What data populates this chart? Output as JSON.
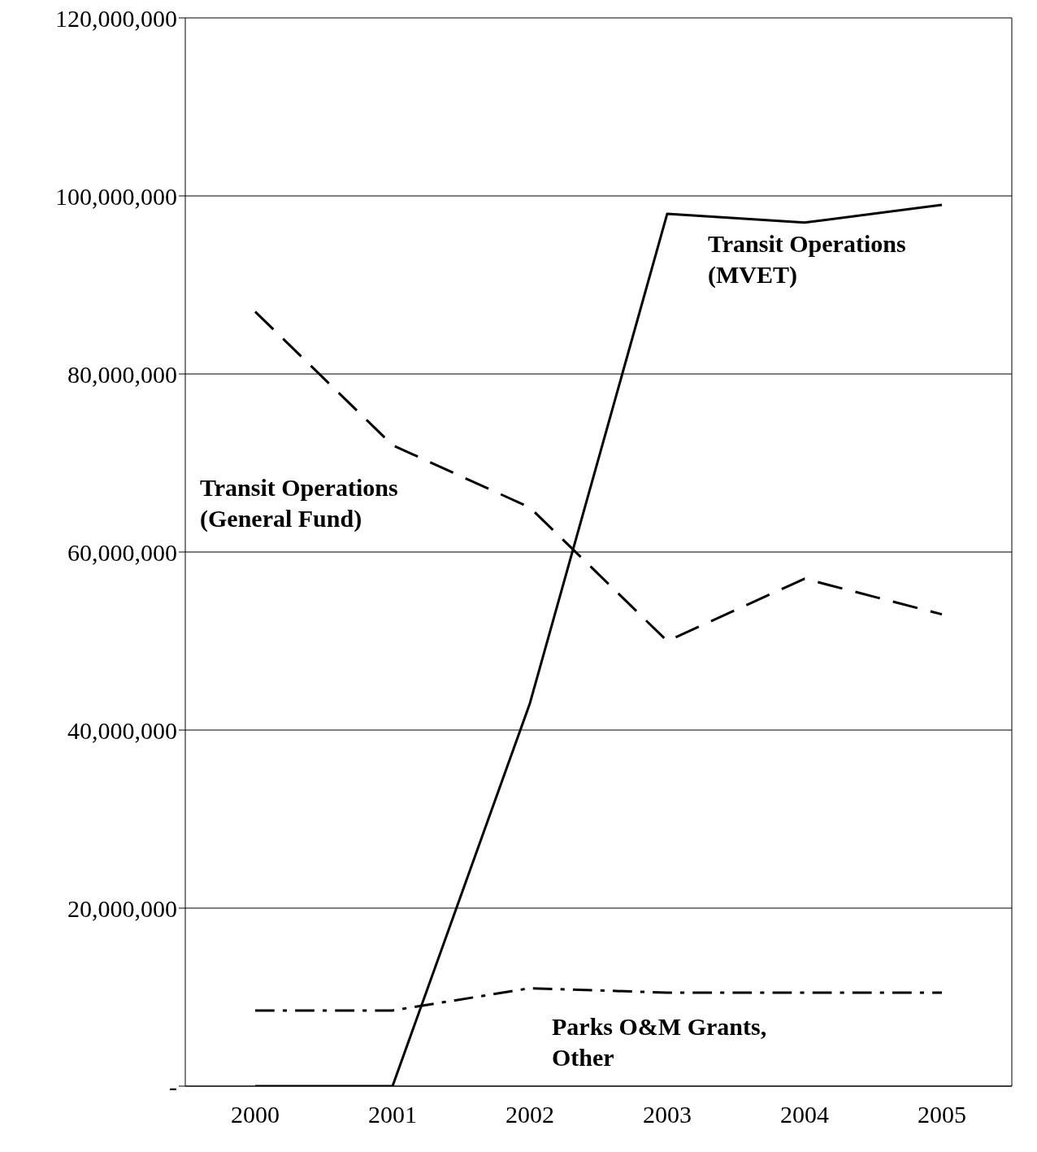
{
  "chart_data": {
    "type": "line",
    "categories": [
      "2000",
      "2001",
      "2002",
      "2003",
      "2004",
      "2005"
    ],
    "series": [
      {
        "name": "Transit Operations (MVET)",
        "color": "#000000",
        "line_style": "solid",
        "values": [
          0,
          0,
          43000000,
          98000000,
          97000000,
          99000000
        ]
      },
      {
        "name": "Transit Operations (General Fund)",
        "color": "#000000",
        "line_style": "dashed",
        "values": [
          87000000,
          72000000,
          65000000,
          50000000,
          57000000,
          53000000
        ]
      },
      {
        "name": "Parks O&M Grants, Other",
        "color": "#000000",
        "line_style": "dotted",
        "values": [
          8500000,
          8500000,
          11000000,
          10500000,
          10500000,
          10500000
        ]
      }
    ],
    "ylim": [
      0,
      120000000
    ],
    "yticks": [
      {
        "value": 0,
        "label": "-"
      },
      {
        "value": 20000000,
        "label": "20,000,000"
      },
      {
        "value": 40000000,
        "label": "40,000,000"
      },
      {
        "value": 60000000,
        "label": "60,000,000"
      },
      {
        "value": 80000000,
        "label": "80,000,000"
      },
      {
        "value": 100000000,
        "label": "100,000,000"
      },
      {
        "value": 120000000,
        "label": "120,000,000"
      }
    ],
    "grid": "y",
    "marker": "none"
  }
}
